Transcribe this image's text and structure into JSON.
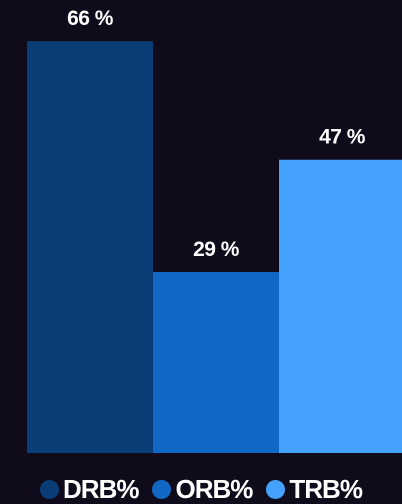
{
  "chart_data": {
    "type": "bar",
    "categories": [
      "DRB%",
      "ORB%",
      "TRB%"
    ],
    "values": [
      66,
      29,
      47
    ],
    "value_labels": [
      "66 %",
      "29 %",
      "47 %"
    ],
    "ylim": [
      0,
      70
    ],
    "colors": [
      "#0a3d75",
      "#1168c4",
      "#44a2fc"
    ],
    "grid": false,
    "legend_position": "bottom",
    "title": "",
    "xlabel": "",
    "ylabel": ""
  },
  "legend": {
    "items": [
      {
        "label": "DRB%",
        "color": "#0a3d75"
      },
      {
        "label": "ORB%",
        "color": "#1168c4"
      },
      {
        "label": "TRB%",
        "color": "#44a2fc"
      }
    ]
  },
  "theme": {
    "background": "#100b1a"
  }
}
